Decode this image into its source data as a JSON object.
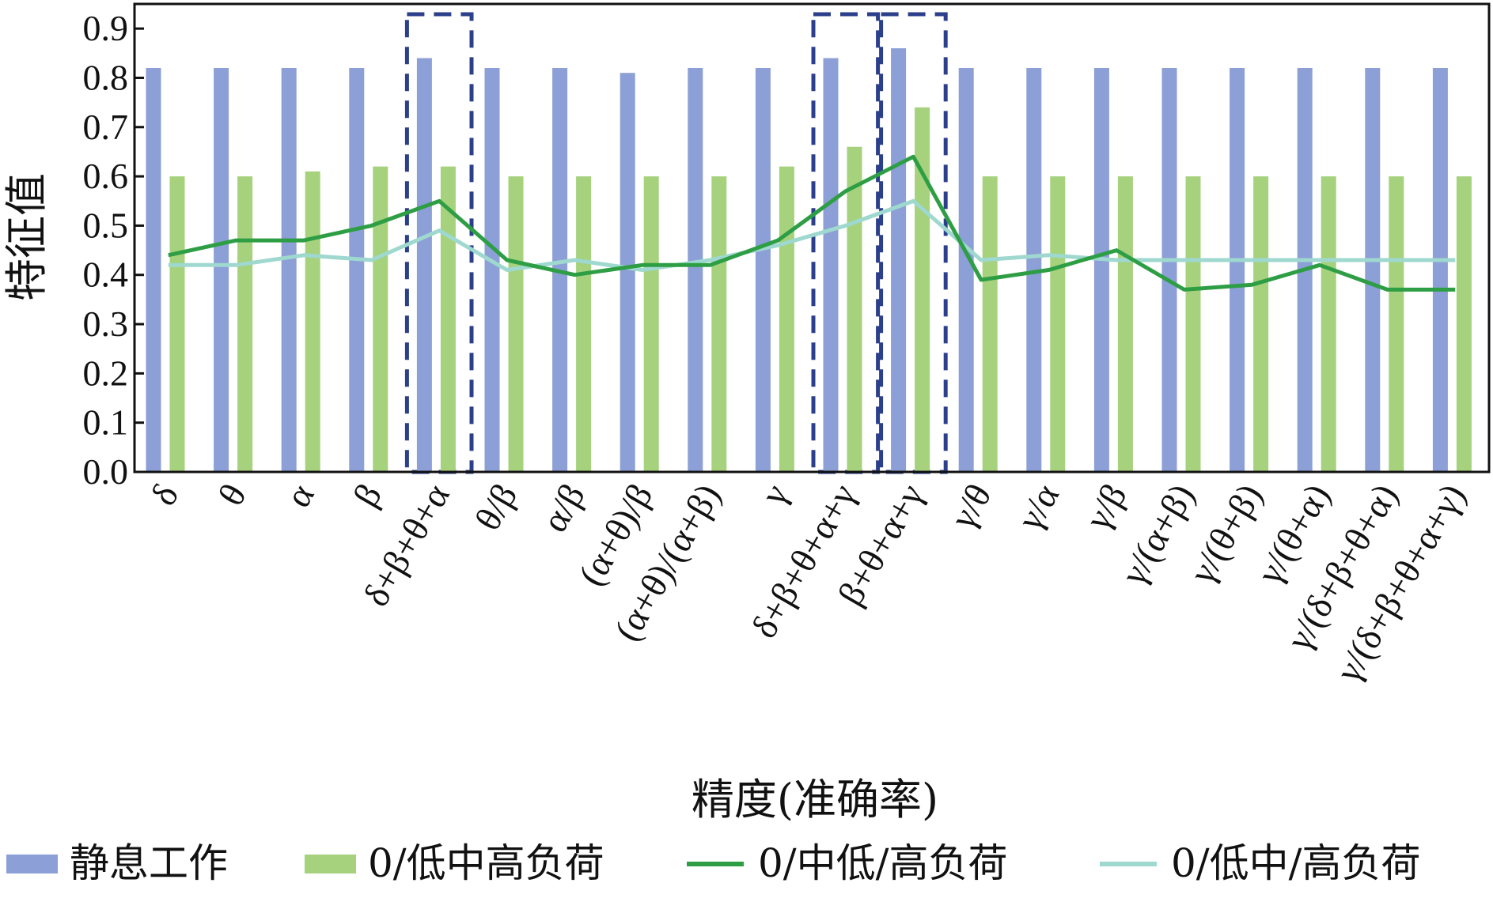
{
  "chart_data": {
    "type": "bar",
    "title": "",
    "xlabel": "精度(准确率)",
    "ylabel": "特征值",
    "ylim": [
      0.0,
      0.95
    ],
    "yticks": [
      "0.0",
      "0.1",
      "0.2",
      "0.3",
      "0.4",
      "0.5",
      "0.6",
      "0.7",
      "0.8",
      "0.9"
    ],
    "categories": [
      "δ",
      "θ",
      "α",
      "β",
      "δ+β+θ+α",
      "θ/β",
      "α/β",
      "(α+θ)/β",
      "(α+θ)/(α+β)",
      "γ",
      "δ+β+θ+α+γ",
      "β+θ+α+γ",
      "γ/θ",
      "γ/α",
      "γ/β",
      "γ/(α+β)",
      "γ/(θ+β)",
      "γ/(θ+α)",
      "γ/(δ+β+θ+α)",
      "γ/(δ+β+θ+α+γ)"
    ],
    "bar_series": [
      {
        "name": "静息工作",
        "color": "#8c9fd6",
        "values": [
          0.82,
          0.82,
          0.82,
          0.82,
          0.84,
          0.82,
          0.82,
          0.81,
          0.82,
          0.82,
          0.84,
          0.86,
          0.82,
          0.82,
          0.82,
          0.82,
          0.82,
          0.82,
          0.82,
          0.82
        ]
      },
      {
        "name": "0/低中高负荷",
        "color": "#a6d17d",
        "values": [
          0.6,
          0.6,
          0.61,
          0.62,
          0.62,
          0.6,
          0.6,
          0.6,
          0.6,
          0.62,
          0.66,
          0.74,
          0.6,
          0.6,
          0.6,
          0.6,
          0.6,
          0.6,
          0.6,
          0.6
        ]
      }
    ],
    "line_series": [
      {
        "name": "0/中低/高负荷",
        "color": "#2e9e45",
        "values": [
          0.44,
          0.47,
          0.47,
          0.5,
          0.55,
          0.43,
          0.4,
          0.42,
          0.42,
          0.47,
          0.57,
          0.64,
          0.39,
          0.41,
          0.45,
          0.37,
          0.38,
          0.42,
          0.37,
          0.37
        ]
      },
      {
        "name": "0/低中/高负荷",
        "color": "#9ed8cf",
        "values": [
          0.42,
          0.42,
          0.44,
          0.43,
          0.49,
          0.41,
          0.43,
          0.41,
          0.43,
          0.46,
          0.5,
          0.55,
          0.43,
          0.44,
          0.43,
          0.43,
          0.43,
          0.43,
          0.43,
          0.43
        ]
      }
    ],
    "highlight_boxes": [
      {
        "from_category": 4,
        "to_category": 4
      },
      {
        "from_category": 10,
        "to_category": 10
      },
      {
        "from_category": 11,
        "to_category": 11
      }
    ],
    "highlight_color": "#2b3f8a",
    "legend_placement": "bottom",
    "grid": false
  }
}
